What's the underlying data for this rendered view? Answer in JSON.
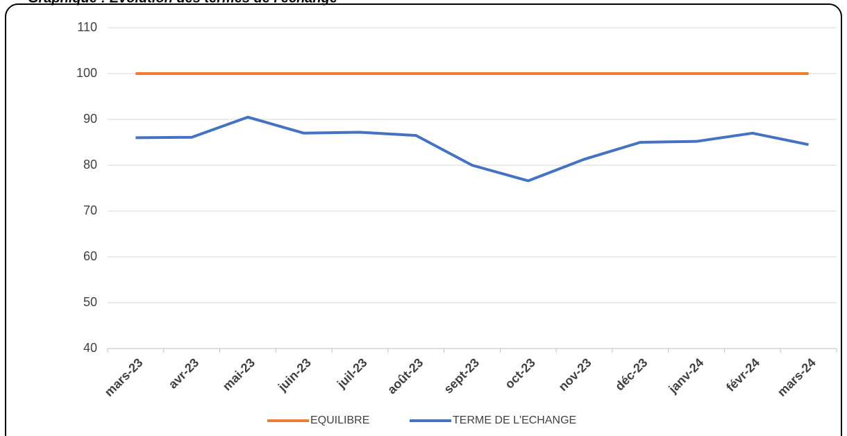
{
  "chart_data": {
    "type": "line",
    "title": "Graphique : Evolution des termes de l'échange",
    "categories": [
      "mars-23",
      "avr-23",
      "mai-23",
      "juin-23",
      "juil-23",
      "août-23",
      "sept-23",
      "oct-23",
      "nov-23",
      "déc-23",
      "janv-24",
      "févr-24",
      "mars-24"
    ],
    "series": [
      {
        "name": "EQUILIBRE",
        "color": "#ed7d31",
        "values": [
          100,
          100,
          100,
          100,
          100,
          100,
          100,
          100,
          100,
          100,
          100,
          100,
          100
        ]
      },
      {
        "name": "TERME DE L'ECHANGE",
        "color": "#4472c4",
        "values": [
          86,
          86.1,
          90.5,
          87,
          87.2,
          86.5,
          80,
          76.6,
          81.3,
          85,
          85.2,
          87,
          84.5
        ]
      }
    ],
    "ylim": [
      40,
      110
    ],
    "yticks": [
      40,
      50,
      60,
      70,
      80,
      90,
      100,
      110
    ],
    "grid": true,
    "legend": "bottom"
  }
}
